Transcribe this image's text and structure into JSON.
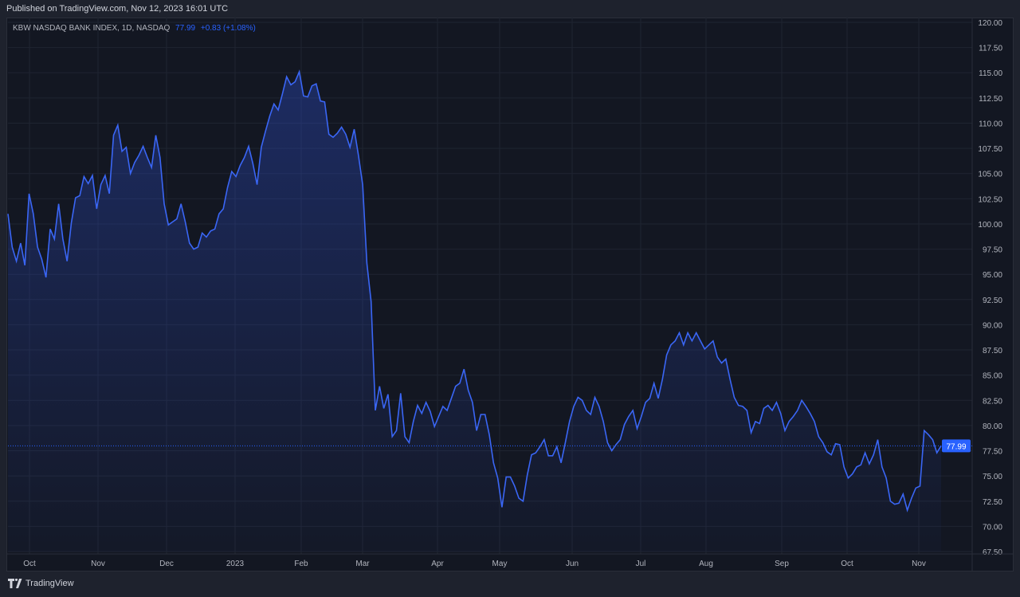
{
  "header": {
    "published": "Published on TradingView.com, Nov 12, 2023 16:01 UTC"
  },
  "legend": {
    "symbol": "KBW NASDAQ BANK INDEX, 1D, NASDAQ",
    "last": "77.99",
    "change": "+0.83 (+1.08%)"
  },
  "footer": {
    "brand": "TradingView",
    "logo_icon": "tradingview-logo-icon"
  },
  "colors": {
    "line": "#3a66f5",
    "background": "#131722",
    "grid": "#1f2431",
    "label_bg": "#2962ff"
  },
  "chart_data": {
    "type": "area",
    "title": "KBW NASDAQ BANK INDEX, 1D, NASDAQ",
    "ylim": [
      67.5,
      120
    ],
    "yticks": [
      "120.00",
      "117.50",
      "115.00",
      "112.50",
      "110.00",
      "107.50",
      "105.00",
      "102.50",
      "100.00",
      "97.50",
      "95.00",
      "92.50",
      "90.00",
      "87.50",
      "85.00",
      "82.50",
      "80.00",
      "77.50",
      "75.00",
      "72.50",
      "70.00",
      "67.50"
    ],
    "xticks": [
      "Oct",
      "Nov",
      "Dec",
      "2023",
      "Feb",
      "Mar",
      "Apr",
      "May",
      "Jun",
      "Jul",
      "Aug",
      "Sep",
      "Oct",
      "Nov"
    ],
    "last_price": 77.99,
    "last_price_label": "77.99",
    "grid": true,
    "values": [
      101.0,
      97.7,
      96.3,
      98.1,
      95.9,
      103.0,
      101.0,
      97.7,
      96.5,
      94.7,
      99.5,
      98.5,
      102.0,
      98.5,
      96.3,
      100.1,
      102.6,
      102.8,
      104.7,
      104.0,
      104.8,
      101.5,
      103.9,
      104.8,
      103.0,
      108.8,
      109.8,
      107.2,
      107.6,
      105.0,
      106.1,
      106.8,
      107.7,
      106.6,
      105.6,
      108.8,
      106.6,
      102.0,
      99.9,
      100.2,
      100.5,
      102.0,
      100.2,
      98.1,
      97.5,
      97.7,
      99.1,
      98.7,
      99.3,
      99.5,
      101.0,
      101.5,
      103.6,
      105.2,
      104.7,
      105.8,
      106.6,
      107.7,
      106.0,
      103.9,
      107.6,
      109.2,
      110.7,
      111.9,
      111.3,
      112.9,
      114.6,
      113.8,
      114.1,
      115.1,
      112.7,
      112.6,
      113.7,
      113.9,
      112.2,
      112.1,
      108.9,
      108.6,
      109.0,
      109.6,
      108.9,
      107.6,
      109.4,
      106.8,
      103.9,
      96.1,
      92.3,
      81.5,
      83.9,
      81.7,
      83.1,
      78.9,
      79.5,
      83.2,
      78.9,
      78.3,
      80.4,
      82.0,
      81.2,
      82.3,
      81.4,
      79.9,
      80.9,
      81.9,
      81.5,
      82.7,
      83.9,
      84.2,
      85.6,
      83.5,
      82.3,
      79.5,
      81.1,
      81.1,
      79.1,
      76.3,
      74.8,
      71.9,
      74.9,
      74.9,
      74.0,
      72.8,
      72.5,
      75.1,
      77.1,
      77.3,
      77.9,
      78.6,
      77.0,
      77.0,
      77.9,
      76.3,
      78.3,
      80.4,
      81.9,
      82.8,
      82.5,
      81.5,
      81.1,
      82.8,
      81.9,
      80.4,
      78.3,
      77.5,
      78.1,
      78.6,
      80.1,
      80.9,
      81.5,
      79.7,
      80.9,
      82.3,
      82.7,
      84.2,
      82.7,
      84.6,
      87.0,
      88.0,
      88.4,
      89.2,
      88.0,
      89.2,
      88.4,
      89.2,
      88.4,
      87.6,
      88.0,
      88.4,
      86.8,
      86.2,
      86.6,
      84.6,
      82.8,
      82.0,
      81.9,
      81.5,
      79.3,
      80.4,
      80.2,
      81.7,
      82.0,
      81.5,
      82.3,
      81.2,
      79.5,
      80.4,
      80.9,
      81.5,
      82.5,
      81.9,
      81.2,
      80.4,
      78.9,
      78.3,
      77.4,
      77.1,
      78.2,
      78.1,
      75.9,
      74.8,
      75.2,
      75.9,
      76.1,
      77.3,
      76.2,
      77.1,
      78.6,
      75.9,
      74.8,
      72.5,
      72.2,
      72.3,
      73.2,
      71.6,
      72.8,
      73.8,
      74.0,
      79.5,
      79.1,
      78.6,
      77.3,
      77.99
    ]
  }
}
